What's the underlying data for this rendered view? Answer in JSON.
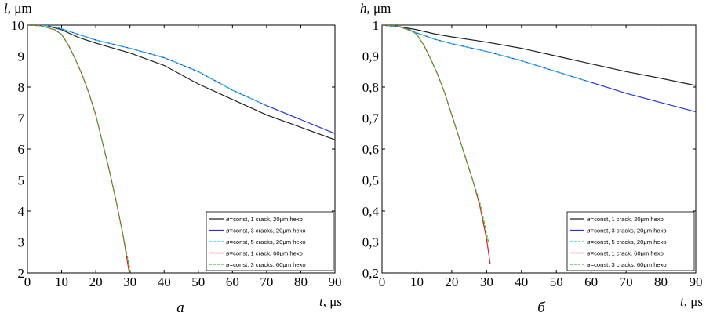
{
  "chart_data": [
    {
      "type": "line",
      "panel_label": "а",
      "ylabel_var": "l",
      "ylabel_unit": ", μm",
      "xlabel_var": "t",
      "xlabel_unit": ", μs",
      "xlim": [
        0,
        90
      ],
      "ylim": [
        2,
        10
      ],
      "xticks": [
        "0",
        "10",
        "20",
        "30",
        "40",
        "50",
        "60",
        "70",
        "80",
        "90"
      ],
      "yticks": [
        "2",
        "3",
        "4",
        "5",
        "6",
        "7",
        "8",
        "9",
        "10"
      ],
      "grid": false,
      "legend_position": "bottom-right",
      "series": [
        {
          "name": "ø=const, 1 crack, 20μm hexo",
          "color": "#222222",
          "dash": "solid",
          "x": [
            0,
            5,
            10,
            15,
            20,
            30,
            40,
            50,
            60,
            70,
            80,
            90
          ],
          "y": [
            10,
            10,
            9.85,
            9.6,
            9.42,
            9.1,
            8.7,
            8.1,
            7.6,
            7.1,
            6.7,
            6.3
          ]
        },
        {
          "name": "ø=const, 3 cracks, 20μm hexo",
          "color": "#2233dd",
          "dash": "solid",
          "x": [
            0,
            5,
            10,
            15,
            20,
            30,
            40,
            50,
            60,
            70,
            80,
            90
          ],
          "y": [
            10,
            10,
            9.88,
            9.7,
            9.52,
            9.25,
            8.95,
            8.5,
            7.9,
            7.4,
            6.95,
            6.5
          ]
        },
        {
          "name": "ø=const, 5 cracks, 20μm hexo",
          "color": "#22c8e8",
          "dash": "dashed",
          "x": [
            0,
            5,
            10,
            15,
            20,
            30,
            40,
            50,
            60,
            70
          ],
          "y": [
            10,
            10,
            9.88,
            9.7,
            9.52,
            9.25,
            8.95,
            8.5,
            7.9,
            7.4
          ]
        },
        {
          "name": "ø=const, 1 crack, 60μm hexo",
          "color": "#dd2222",
          "dash": "solid",
          "x": [
            0,
            4,
            8,
            10,
            12,
            14,
            16,
            18,
            20,
            22,
            24,
            26,
            28,
            29.8
          ],
          "y": [
            10,
            9.98,
            9.85,
            9.7,
            9.35,
            8.9,
            8.4,
            7.8,
            7.1,
            6.2,
            5.3,
            4.3,
            3.2,
            2.0
          ]
        },
        {
          "name": "ø=const, 3 cracks, 60μm hexo",
          "color": "#33bb33",
          "dash": "dashed",
          "x": [
            0,
            4,
            8,
            10,
            12,
            14,
            16,
            18,
            20,
            22,
            24,
            26,
            28,
            30.2
          ],
          "y": [
            10,
            9.98,
            9.85,
            9.7,
            9.35,
            8.9,
            8.4,
            7.8,
            7.1,
            6.2,
            5.3,
            4.3,
            3.2,
            2.0
          ]
        }
      ]
    },
    {
      "type": "line",
      "panel_label": "б",
      "ylabel_var": "h",
      "ylabel_unit": ", μm",
      "xlabel_var": "t",
      "xlabel_unit": ", μs",
      "xlim": [
        0,
        90
      ],
      "ylim": [
        0.2,
        1
      ],
      "xticks": [
        "0",
        "10",
        "20",
        "30",
        "40",
        "50",
        "60",
        "70",
        "80",
        "90"
      ],
      "yticks": [
        "0,2",
        "0,3",
        "0,4",
        "0,5",
        "0,6",
        "0,7",
        "0,8",
        "0,9",
        "1"
      ],
      "grid": false,
      "legend_position": "bottom-right",
      "series": [
        {
          "name": "ø=const, 1 crack, 20μm hexo",
          "color": "#222222",
          "dash": "solid",
          "x": [
            0,
            5,
            10,
            15,
            20,
            30,
            40,
            50,
            60,
            70,
            80,
            90
          ],
          "y": [
            1,
            0.995,
            0.985,
            0.972,
            0.962,
            0.945,
            0.925,
            0.9,
            0.875,
            0.85,
            0.828,
            0.805
          ]
        },
        {
          "name": "ø=const, 3 cracks, 20μm hexo",
          "color": "#2233dd",
          "dash": "solid",
          "x": [
            0,
            5,
            10,
            15,
            20,
            30,
            40,
            50,
            60,
            70,
            80,
            90
          ],
          "y": [
            1,
            0.995,
            0.975,
            0.955,
            0.94,
            0.915,
            0.885,
            0.85,
            0.815,
            0.78,
            0.75,
            0.72
          ]
        },
        {
          "name": "ø=const, 5 cracks, 20μm hexo",
          "color": "#22c8e8",
          "dash": "dashed",
          "x": [
            0,
            5,
            10,
            15,
            20,
            30,
            40,
            50,
            60
          ],
          "y": [
            1,
            0.995,
            0.975,
            0.955,
            0.94,
            0.915,
            0.885,
            0.85,
            0.815
          ]
        },
        {
          "name": "ø=const, 1 crack, 60μm hexo",
          "color": "#dd2222",
          "dash": "solid",
          "x": [
            0,
            4,
            8,
            10,
            12,
            14,
            16,
            18,
            20,
            22,
            24,
            26,
            28,
            30,
            31
          ],
          "y": [
            1,
            0.998,
            0.985,
            0.97,
            0.935,
            0.89,
            0.84,
            0.78,
            0.71,
            0.64,
            0.57,
            0.5,
            0.42,
            0.31,
            0.23
          ]
        },
        {
          "name": "ø=const, 3 cracks, 60μm hexo",
          "color": "#33bb33",
          "dash": "dashed",
          "x": [
            0,
            4,
            8,
            10,
            12,
            14,
            16,
            18,
            20,
            22,
            24,
            26,
            28,
            30.5
          ],
          "y": [
            1,
            0.998,
            0.985,
            0.97,
            0.935,
            0.89,
            0.84,
            0.78,
            0.71,
            0.64,
            0.57,
            0.5,
            0.43,
            0.3
          ]
        }
      ]
    }
  ]
}
